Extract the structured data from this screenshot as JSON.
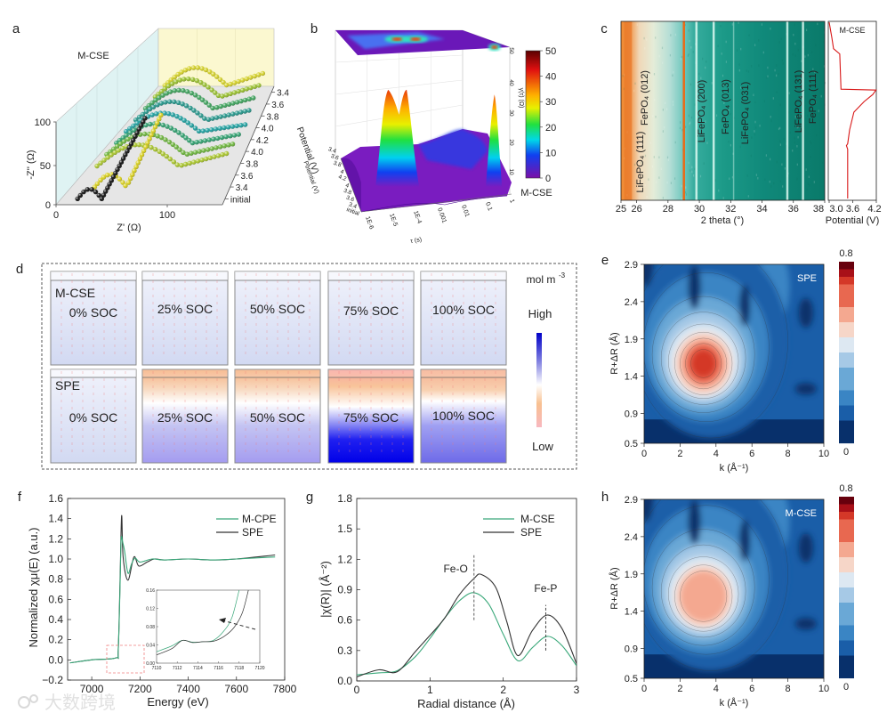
{
  "panel_labels": [
    "a",
    "b",
    "c",
    "d",
    "e",
    "f",
    "g",
    "h"
  ],
  "watermark": "大数跨境",
  "panel_d": {
    "rows": [
      "M-CSE",
      "SPE"
    ],
    "cells": [
      "0% SOC",
      "25% SOC",
      "50% SOC",
      "75% SOC",
      "100% SOC"
    ],
    "unit": "mol m",
    "unit_sup": "-3",
    "high": "High",
    "low": "Low",
    "colors": {
      "high": "#0000c8",
      "mid": "#ffffff",
      "low": "#f8b8c0"
    }
  },
  "chart_data": [
    {
      "type": "scatter",
      "title": "M-CSE",
      "xlabel": "Z' (Ω)",
      "ylabel": "-Z'' (Ω)",
      "zlabel": "Potential (V)",
      "xticks": [
        "0",
        "100"
      ],
      "yticks": [
        "0",
        "50",
        "100"
      ],
      "zticks": [
        "initial",
        "3.4",
        "3.6",
        "3.8",
        "4.0",
        "4.2",
        "4.0",
        "3.8",
        "3.6",
        "3.4"
      ],
      "series": [
        {
          "name": "initial",
          "color": "#111111",
          "Rs": 15,
          "Rct": 22,
          "base": 0,
          "arc_height": 12,
          "tail_slope": 2.5,
          "tail_end": 77
        },
        {
          "name": "3.4",
          "color": "#d8cf1e",
          "Rs": 22,
          "Rct": 30,
          "base": 0,
          "arc_height": 16,
          "tail_slope": 2.8,
          "tail_end": 85
        },
        {
          "name": "3.6",
          "color": "#a9c52c",
          "Rs": 15,
          "Rct": 80,
          "base": 12,
          "arc_height": 28,
          "tail_slope": 0.35,
          "tail_end": 145
        },
        {
          "name": "3.8",
          "color": "#6cb43c",
          "Rs": 15,
          "Rct": 80,
          "base": 12,
          "arc_height": 28,
          "tail_slope": 0.3,
          "tail_end": 145
        },
        {
          "name": "4.0",
          "color": "#2f9f6e",
          "Rs": 15,
          "Rct": 80,
          "base": 12,
          "arc_height": 27,
          "tail_slope": 0.25,
          "tail_end": 145
        },
        {
          "name": "4.2",
          "color": "#1f9f9f",
          "Rs": 15,
          "Rct": 80,
          "base": 12,
          "arc_height": 27,
          "tail_slope": 0.2,
          "tail_end": 145
        },
        {
          "name": "4.0",
          "color": "#25958a",
          "Rs": 15,
          "Rct": 80,
          "base": 12,
          "arc_height": 28,
          "tail_slope": 0.3,
          "tail_end": 145
        },
        {
          "name": "3.8",
          "color": "#3ea25c",
          "Rs": 15,
          "Rct": 80,
          "base": 12,
          "arc_height": 29,
          "tail_slope": 0.35,
          "tail_end": 145
        },
        {
          "name": "3.6",
          "color": "#98bf2e",
          "Rs": 15,
          "Rct": 80,
          "base": 12,
          "arc_height": 30,
          "tail_slope": 0.4,
          "tail_end": 145
        },
        {
          "name": "3.4",
          "color": "#d4d028",
          "Rs": 15,
          "Rct": 80,
          "base": 12,
          "arc_height": 31,
          "tail_slope": 0.45,
          "tail_end": 145
        }
      ]
    },
    {
      "type": "surface",
      "title": "M-CSE",
      "xlabel": "τ (s)",
      "ylabel": "Potential (V)",
      "zlabel": "γ(τ) (Ω)",
      "xticks": [
        "1E-6",
        "1E-5",
        "1E-4",
        "0.001",
        "0.01",
        "0.1",
        "1"
      ],
      "yticks": [
        "initial",
        "3.4",
        "3.6",
        "3.8",
        "4",
        "4.2",
        "4",
        "3.8",
        "3.6",
        "3.4"
      ],
      "zticks": [
        "10",
        "20",
        "30",
        "40",
        "50"
      ],
      "colorbar": {
        "min": 0,
        "max": 50,
        "ticks": [
          "0",
          "10",
          "20",
          "30",
          "40",
          "50"
        ]
      },
      "peaks": [
        {
          "tau": 1.2e-05,
          "value": 33
        },
        {
          "tau": 7e-05,
          "value": 33
        },
        {
          "tau": 0.3,
          "value": 31
        }
      ]
    },
    {
      "type": "heatmap",
      "title": "M-CSE",
      "xlabel": "2 theta (°)",
      "xlim": [
        25,
        38
      ],
      "xticks": [
        "25",
        "26",
        "28",
        "30",
        "32",
        "34",
        "36",
        "38"
      ],
      "peak_labels": [
        "LiFePO₄ (111)",
        "FePO₄ (012)",
        "LiFePO₄ (200)",
        "FePO₄ (013)",
        "LiFePO₄ (031)",
        "LiFePO₄ (131)",
        "FePO₄ (111)"
      ],
      "orange_line": 29.0,
      "bright_lines": [
        29.8,
        30.9,
        32.2,
        35.6,
        36.6
      ],
      "side_plot": {
        "title": "M-CSE",
        "xlabel": "Potential (V)",
        "xlim": [
          3.0,
          4.2
        ],
        "xticks": [
          "3.0",
          "3.6",
          "4.2"
        ],
        "curve": [
          [
            0,
            3.0
          ],
          [
            0.09,
            3.07
          ],
          [
            0.15,
            3.11
          ],
          [
            0.18,
            3.27
          ],
          [
            0.38,
            3.3
          ],
          [
            0.385,
            4.19
          ],
          [
            0.41,
            4.11
          ],
          [
            0.45,
            3.89
          ],
          [
            0.51,
            3.63
          ],
          [
            0.61,
            3.52
          ],
          [
            0.69,
            3.47
          ],
          [
            0.7,
            3.44
          ],
          [
            0.72,
            3.47
          ],
          [
            1.0,
            3.47
          ]
        ]
      }
    },
    {
      "type": "heatmap",
      "title": "SPE",
      "xlabel": "k (Å⁻¹)",
      "ylabel": "R+ΔR (Å)",
      "xlim": [
        0,
        10
      ],
      "ylim": [
        0.5,
        2.9
      ],
      "xticks": [
        "0",
        "2",
        "4",
        "6",
        "8",
        "10"
      ],
      "yticks": [
        "2.9",
        "2.4",
        "1.9",
        "1.4",
        "0.9",
        "0.5"
      ],
      "colorbar": {
        "min": 0,
        "max": 0.8,
        "ticks": [
          "0.8",
          "0"
        ]
      },
      "peak": {
        "k": 3.3,
        "R": 1.57,
        "intensity": 0.76
      }
    },
    {
      "type": "line",
      "xlabel": "Energy (eV)",
      "ylabel": "Normalized χμ(E) (a.u.)",
      "xlim": [
        6900,
        7800
      ],
      "ylim": [
        -0.2,
        1.6
      ],
      "xticks": [
        "7000",
        "7200",
        "7400",
        "7600",
        "7800"
      ],
      "yticks": [
        "1.6",
        "1.4",
        "1.2",
        "1.0",
        "0.8",
        "0.6",
        "0.4",
        "0.2",
        "0.0",
        "−0.2"
      ],
      "series": [
        {
          "name": "M-CPE",
          "color": "#3aa87a",
          "points": [
            [
              6910,
              -0.03
            ],
            [
              7000,
              0
            ],
            [
              7100,
              0.02
            ],
            [
              7110,
              0.1
            ],
            [
              7118,
              0.8
            ],
            [
              7122,
              1.2
            ],
            [
              7128,
              1.17
            ],
            [
              7136,
              1.08
            ],
            [
              7150,
              0.86
            ],
            [
              7165,
              0.95
            ],
            [
              7180,
              1.01
            ],
            [
              7200,
              0.97
            ],
            [
              7250,
              1.0
            ],
            [
              7300,
              0.99
            ],
            [
              7400,
              1.0
            ],
            [
              7500,
              0.99
            ],
            [
              7600,
              1.0
            ],
            [
              7760,
              1.02
            ]
          ]
        },
        {
          "name": "SPE",
          "color": "#333333",
          "points": [
            [
              6910,
              -0.03
            ],
            [
              7000,
              0
            ],
            [
              7100,
              0.02
            ],
            [
              7110,
              0.1
            ],
            [
              7118,
              0.85
            ],
            [
              7124,
              1.43
            ],
            [
              7130,
              1.02
            ],
            [
              7150,
              0.79
            ],
            [
              7175,
              1.02
            ],
            [
              7195,
              0.93
            ],
            [
              7230,
              0.97
            ],
            [
              7260,
              1.0
            ],
            [
              7300,
              0.99
            ],
            [
              7400,
              1.0
            ],
            [
              7500,
              0.99
            ],
            [
              7600,
              1.0
            ],
            [
              7760,
              1.04
            ]
          ]
        }
      ],
      "inset": {
        "xlim": [
          7110,
          7120
        ],
        "ylim": [
          0,
          0.16
        ],
        "xticks": [
          "7110",
          "7112",
          "7114",
          "7116",
          "7118",
          "7120"
        ],
        "yticks": [
          "0.00",
          "0.04",
          "0.08",
          "0.12",
          "0.16"
        ],
        "series": [
          {
            "name": "M-CPE",
            "points": [
              [
                7110,
                0.025
              ],
              [
                7111.5,
                0.038
              ],
              [
                7112.5,
                0.05
              ],
              [
                7113.5,
                0.046
              ],
              [
                7114.5,
                0.047
              ],
              [
                7115.5,
                0.05
              ],
              [
                7116.5,
                0.07
              ],
              [
                7117.3,
                0.1
              ],
              [
                7118,
                0.16
              ]
            ]
          },
          {
            "name": "SPE",
            "points": [
              [
                7110,
                0.018
              ],
              [
                7111.5,
                0.032
              ],
              [
                7112.5,
                0.05
              ],
              [
                7113.5,
                0.045
              ],
              [
                7114.5,
                0.047
              ],
              [
                7115.5,
                0.048
              ],
              [
                7116.5,
                0.058
              ],
              [
                7117.5,
                0.078
              ],
              [
                7118.3,
                0.11
              ],
              [
                7118.9,
                0.16
              ]
            ]
          }
        ]
      }
    },
    {
      "type": "line",
      "xlabel": "Radial distance (Å)",
      "ylabel": "|χ(R)| (Å⁻²)",
      "xlim": [
        0,
        3
      ],
      "ylim": [
        0,
        1.8
      ],
      "xticks": [
        "0",
        "1",
        "2",
        "3"
      ],
      "yticks": [
        "1.8",
        "1.5",
        "1.2",
        "0.9",
        "0.6",
        "0.3",
        "0.0"
      ],
      "annotations": [
        {
          "text": "Fe-O",
          "x": 1.6
        },
        {
          "text": "Fe-P",
          "x": 2.58
        }
      ],
      "series": [
        {
          "name": "M-CSE",
          "color": "#3aa87a",
          "points": [
            [
              0,
              0.06
            ],
            [
              0.3,
              0.08
            ],
            [
              0.55,
              0.1
            ],
            [
              0.8,
              0.24
            ],
            [
              1.0,
              0.42
            ],
            [
              1.2,
              0.62
            ],
            [
              1.4,
              0.79
            ],
            [
              1.6,
              0.87
            ],
            [
              1.8,
              0.76
            ],
            [
              2.0,
              0.46
            ],
            [
              2.2,
              0.2
            ],
            [
              2.4,
              0.33
            ],
            [
              2.6,
              0.44
            ],
            [
              2.8,
              0.35
            ],
            [
              3.0,
              0.15
            ]
          ]
        },
        {
          "name": "SPE",
          "color": "#333333",
          "points": [
            [
              0,
              0.04
            ],
            [
              0.3,
              0.11
            ],
            [
              0.55,
              0.09
            ],
            [
              0.8,
              0.29
            ],
            [
              1.0,
              0.45
            ],
            [
              1.2,
              0.62
            ],
            [
              1.4,
              0.85
            ],
            [
              1.6,
              1.01
            ],
            [
              1.7,
              1.05
            ],
            [
              1.9,
              0.92
            ],
            [
              2.05,
              0.58
            ],
            [
              2.2,
              0.25
            ],
            [
              2.4,
              0.5
            ],
            [
              2.6,
              0.65
            ],
            [
              2.8,
              0.52
            ],
            [
              3.0,
              0.17
            ]
          ]
        }
      ]
    },
    {
      "type": "heatmap",
      "title": "M-CSE",
      "xlabel": "k (Å⁻¹)",
      "ylabel": "R+ΔR (Å)",
      "xlim": [
        0,
        10
      ],
      "ylim": [
        0.5,
        2.9
      ],
      "xticks": [
        "0",
        "2",
        "4",
        "6",
        "8",
        "10"
      ],
      "yticks": [
        "2.9",
        "2.4",
        "1.9",
        "1.4",
        "0.9",
        "0.5"
      ],
      "colorbar": {
        "min": 0,
        "max": 0.8,
        "ticks": [
          "0.8",
          "0"
        ]
      },
      "peak": {
        "k": 3.3,
        "R": 1.6,
        "intensity": 0.62
      }
    }
  ]
}
